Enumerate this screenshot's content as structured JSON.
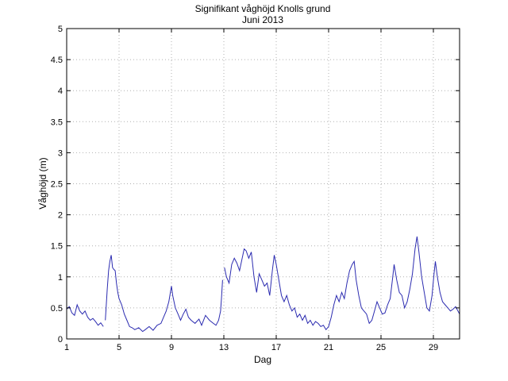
{
  "chart_data": {
    "type": "line",
    "title": "Signifikant våghöjd Knolls grund",
    "subtitle": "Juni 2013",
    "xlabel": "Dag",
    "ylabel": "Våghöjd (m)",
    "xlim": [
      1,
      31
    ],
    "ylim": [
      0,
      5
    ],
    "xticks": [
      1,
      5,
      9,
      13,
      17,
      21,
      25,
      29
    ],
    "yticks": [
      0,
      0.5,
      1,
      1.5,
      2,
      2.5,
      3,
      3.5,
      4,
      4.5,
      5
    ],
    "xtick_labels": [
      "1",
      "5",
      "9",
      "13",
      "17",
      "21",
      "25",
      "29"
    ],
    "ytick_labels": [
      "0",
      "0.5",
      "1",
      "1.5",
      "2",
      "2.5",
      "3",
      "3.5",
      "4",
      "4.5",
      "5"
    ],
    "grid": true,
    "line_color": "#2b2bb0",
    "series": [
      {
        "segments": [
          [
            [
              1.0,
              0.48
            ],
            [
              1.2,
              0.52
            ],
            [
              1.4,
              0.42
            ],
            [
              1.6,
              0.38
            ],
            [
              1.8,
              0.55
            ],
            [
              2.0,
              0.45
            ],
            [
              2.2,
              0.4
            ],
            [
              2.4,
              0.45
            ],
            [
              2.6,
              0.35
            ],
            [
              2.8,
              0.3
            ],
            [
              3.0,
              0.33
            ],
            [
              3.2,
              0.28
            ],
            [
              3.4,
              0.22
            ],
            [
              3.6,
              0.26
            ],
            [
              3.8,
              0.2
            ]
          ],
          [
            [
              3.95,
              0.3
            ],
            [
              4.1,
              0.8
            ],
            [
              4.2,
              1.1
            ],
            [
              4.3,
              1.25
            ],
            [
              4.4,
              1.35
            ],
            [
              4.5,
              1.15
            ],
            [
              4.6,
              1.12
            ],
            [
              4.7,
              1.1
            ],
            [
              4.8,
              0.9
            ],
            [
              4.9,
              0.75
            ],
            [
              5.0,
              0.65
            ],
            [
              5.2,
              0.55
            ],
            [
              5.4,
              0.4
            ],
            [
              5.6,
              0.3
            ],
            [
              5.8,
              0.2
            ],
            [
              6.0,
              0.18
            ],
            [
              6.2,
              0.15
            ],
            [
              6.5,
              0.18
            ],
            [
              6.8,
              0.12
            ],
            [
              7.0,
              0.15
            ],
            [
              7.3,
              0.2
            ],
            [
              7.6,
              0.14
            ],
            [
              7.9,
              0.22
            ],
            [
              8.2,
              0.25
            ],
            [
              8.4,
              0.35
            ],
            [
              8.6,
              0.45
            ],
            [
              8.8,
              0.6
            ],
            [
              9.0,
              0.85
            ],
            [
              9.1,
              0.7
            ],
            [
              9.3,
              0.5
            ],
            [
              9.5,
              0.4
            ],
            [
              9.7,
              0.3
            ],
            [
              9.9,
              0.4
            ],
            [
              10.1,
              0.48
            ],
            [
              10.3,
              0.35
            ],
            [
              10.5,
              0.3
            ],
            [
              10.8,
              0.25
            ],
            [
              11.1,
              0.32
            ],
            [
              11.3,
              0.22
            ],
            [
              11.6,
              0.38
            ],
            [
              11.9,
              0.3
            ],
            [
              12.2,
              0.25
            ],
            [
              12.4,
              0.22
            ],
            [
              12.6,
              0.3
            ],
            [
              12.75,
              0.45
            ],
            [
              12.82,
              0.65
            ],
            [
              12.9,
              0.95
            ]
          ],
          [
            [
              13.05,
              1.15
            ],
            [
              13.2,
              1.0
            ],
            [
              13.4,
              0.9
            ],
            [
              13.6,
              1.2
            ],
            [
              13.8,
              1.3
            ],
            [
              14.0,
              1.22
            ],
            [
              14.2,
              1.1
            ],
            [
              14.4,
              1.3
            ],
            [
              14.55,
              1.45
            ],
            [
              14.7,
              1.42
            ],
            [
              14.9,
              1.3
            ],
            [
              15.1,
              1.4
            ],
            [
              15.3,
              1.0
            ],
            [
              15.5,
              0.75
            ],
            [
              15.7,
              1.05
            ],
            [
              15.9,
              0.95
            ],
            [
              16.1,
              0.85
            ],
            [
              16.3,
              0.9
            ],
            [
              16.5,
              0.7
            ],
            [
              16.7,
              1.1
            ],
            [
              16.85,
              1.35
            ],
            [
              17.0,
              1.2
            ],
            [
              17.2,
              0.95
            ],
            [
              17.4,
              0.7
            ],
            [
              17.6,
              0.6
            ],
            [
              17.8,
              0.7
            ],
            [
              18.0,
              0.55
            ],
            [
              18.2,
              0.45
            ],
            [
              18.4,
              0.5
            ],
            [
              18.6,
              0.35
            ],
            [
              18.8,
              0.4
            ],
            [
              19.0,
              0.3
            ],
            [
              19.2,
              0.38
            ],
            [
              19.4,
              0.25
            ],
            [
              19.6,
              0.3
            ],
            [
              19.8,
              0.22
            ],
            [
              20.0,
              0.28
            ],
            [
              20.2,
              0.25
            ],
            [
              20.4,
              0.2
            ],
            [
              20.6,
              0.22
            ],
            [
              20.8,
              0.15
            ],
            [
              21.0,
              0.2
            ],
            [
              21.2,
              0.35
            ],
            [
              21.4,
              0.55
            ],
            [
              21.6,
              0.7
            ],
            [
              21.8,
              0.6
            ],
            [
              22.0,
              0.75
            ],
            [
              22.2,
              0.65
            ],
            [
              22.4,
              0.9
            ],
            [
              22.6,
              1.1
            ],
            [
              22.8,
              1.2
            ],
            [
              22.95,
              1.25
            ],
            [
              23.1,
              0.95
            ],
            [
              23.3,
              0.7
            ],
            [
              23.5,
              0.5
            ],
            [
              23.7,
              0.45
            ],
            [
              23.9,
              0.4
            ],
            [
              24.1,
              0.25
            ],
            [
              24.3,
              0.3
            ],
            [
              24.5,
              0.45
            ],
            [
              24.7,
              0.6
            ],
            [
              24.9,
              0.5
            ],
            [
              25.1,
              0.4
            ],
            [
              25.3,
              0.42
            ],
            [
              25.5,
              0.55
            ],
            [
              25.7,
              0.65
            ],
            [
              25.9,
              1.0
            ],
            [
              26.0,
              1.2
            ],
            [
              26.2,
              0.95
            ],
            [
              26.4,
              0.75
            ],
            [
              26.6,
              0.7
            ],
            [
              26.8,
              0.5
            ],
            [
              27.0,
              0.6
            ],
            [
              27.2,
              0.8
            ],
            [
              27.4,
              1.05
            ],
            [
              27.6,
              1.45
            ],
            [
              27.75,
              1.65
            ],
            [
              27.9,
              1.4
            ],
            [
              28.1,
              1.0
            ],
            [
              28.3,
              0.75
            ],
            [
              28.5,
              0.5
            ],
            [
              28.7,
              0.45
            ],
            [
              28.9,
              0.7
            ],
            [
              29.05,
              1.05
            ],
            [
              29.15,
              1.25
            ],
            [
              29.3,
              1.0
            ],
            [
              29.5,
              0.75
            ],
            [
              29.7,
              0.6
            ],
            [
              29.9,
              0.55
            ],
            [
              30.1,
              0.5
            ],
            [
              30.3,
              0.45
            ],
            [
              30.5,
              0.48
            ],
            [
              30.7,
              0.52
            ],
            [
              31.0,
              0.4
            ]
          ]
        ]
      }
    ]
  }
}
